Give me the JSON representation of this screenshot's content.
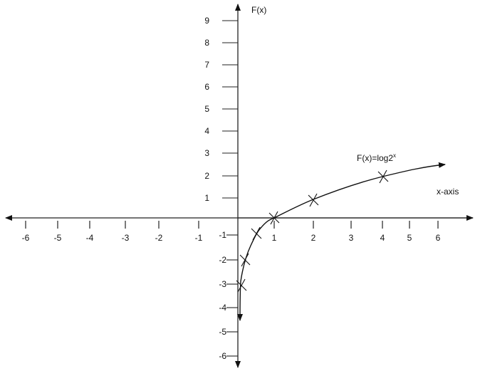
{
  "diagram": {
    "y_axis_label": "F(x)",
    "x_axis_label": "x-axis",
    "curve_label": "F(x)=log2",
    "curve_label_superscript": "x",
    "x_tick_labels": [
      "-6",
      "-5",
      "-4",
      "-3",
      "-2",
      "-1",
      "1",
      "2",
      "3",
      "4",
      "5",
      "6"
    ],
    "y_tick_labels_positive": [
      "9",
      "8",
      "7",
      "6",
      "5",
      "4",
      "3",
      "2",
      "1"
    ],
    "y_tick_labels_negative": [
      "-1",
      "-2",
      "-3",
      "-4",
      "-5",
      "-6"
    ],
    "marked_points": [
      [
        0.25,
        -2
      ],
      [
        0.5,
        -1
      ],
      [
        1,
        0
      ],
      [
        2,
        1
      ],
      [
        4,
        2
      ]
    ],
    "colors": {
      "ink": "#111111",
      "axis_gray": "#777777"
    }
  }
}
